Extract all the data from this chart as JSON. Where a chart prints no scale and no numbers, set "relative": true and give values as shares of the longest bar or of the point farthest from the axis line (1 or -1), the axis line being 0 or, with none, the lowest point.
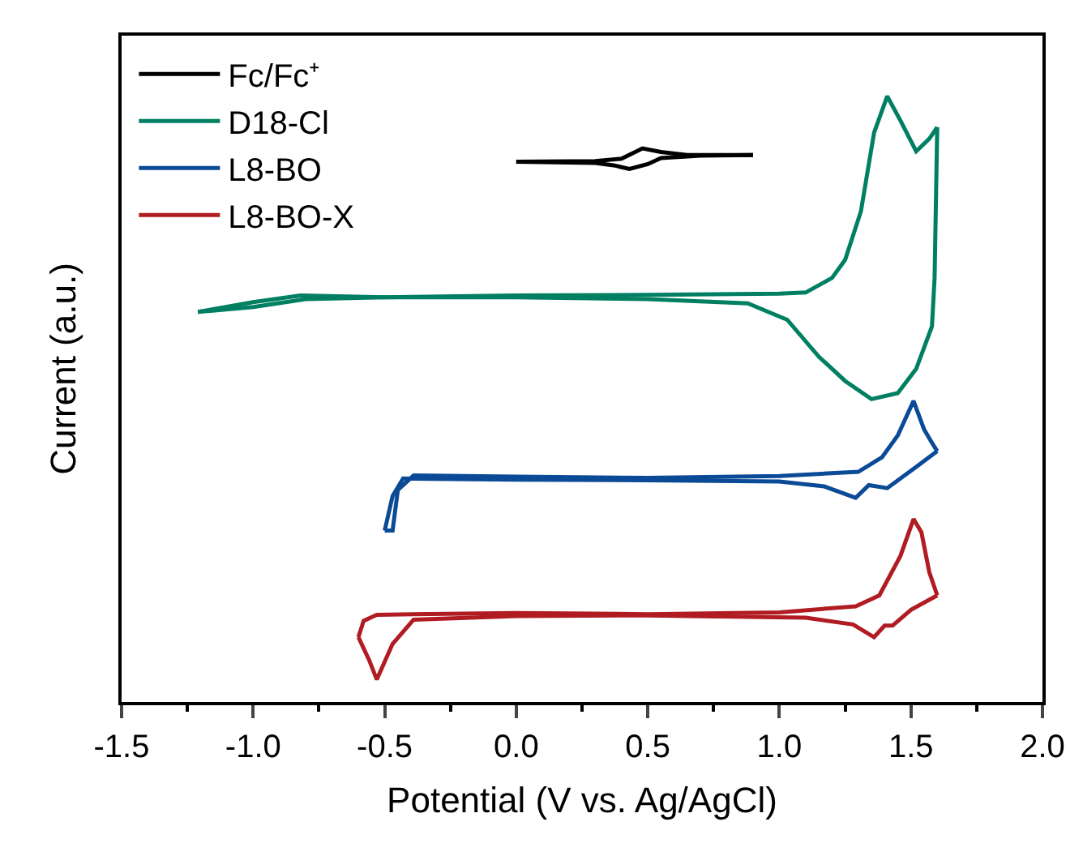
{
  "chart_data": {
    "type": "line",
    "relative": true,
    "xlabel": "Potential (V vs. Ag/AgCl)",
    "ylabel": "Current (a.u.)",
    "xlim": [
      -1.5,
      2.0
    ],
    "xticks": [
      -1.5,
      {
        "value": -1,
        "label": "-1.0"
      },
      -0.5,
      {
        "value": 0,
        "label": "0.0"
      },
      0.5,
      {
        "value": 1,
        "label": "1.0"
      },
      1.5,
      {
        "value": 2,
        "label": "2.0"
      }
    ],
    "legend": "top left",
    "marker": "none",
    "line_style": "solid",
    "series": [
      {
        "name": "Fc/Fc⁺",
        "color": "#000000",
        "x": [
          0,
          0.3,
          0.4,
          0.48,
          0.55,
          0.65,
          0.9
        ],
        "values": [
          0.892,
          0.893,
          0.897,
          0.914,
          0.908,
          0.903,
          0.903
        ]
      },
      {
        "color": "#000000",
        "x": [
          0.9,
          0.7,
          0.55,
          0.5,
          0.43,
          0.37,
          0.3,
          0
        ],
        "values": [
          0.903,
          0.902,
          0.898,
          0.888,
          0.88,
          0.886,
          0.89,
          0.892
        ]
      },
      {
        "name": "D18-Cl",
        "color": "#007f62",
        "x": [
          -1.21,
          -1.0,
          -0.8,
          -0.5,
          0,
          0.5,
          1.0,
          1.1,
          1.2,
          1.25,
          1.31,
          1.36,
          1.41,
          1.46,
          1.52,
          1.57,
          1.6
        ],
        "values": [
          0.644,
          0.652,
          0.665,
          0.668,
          0.671,
          0.672,
          0.674,
          0.676,
          0.7,
          0.73,
          0.81,
          0.94,
          1.0,
          0.96,
          0.909,
          0.93,
          0.949
        ]
      },
      {
        "color": "#007f62",
        "x": [
          1.6,
          1.59,
          1.58,
          1.52,
          1.45,
          1.35,
          1.25,
          1.15,
          1.03,
          0.88,
          0.5,
          0,
          -0.5,
          -0.82,
          -1.0,
          -1.21
        ],
        "values": [
          0.949,
          0.7,
          0.62,
          0.55,
          0.51,
          0.5,
          0.53,
          0.57,
          0.631,
          0.658,
          0.665,
          0.668,
          0.668,
          0.671,
          0.66,
          0.644
        ]
      },
      {
        "name": "L8-BO",
        "color": "#0b4a96",
        "x": [
          -0.5,
          -0.47,
          -0.45,
          -0.39,
          0,
          0.5,
          1.0,
          1.3,
          1.39,
          1.45,
          1.51,
          1.55,
          1.58,
          1.6
        ],
        "values": [
          0.283,
          0.283,
          0.35,
          0.374,
          0.372,
          0.37,
          0.373,
          0.38,
          0.404,
          0.44,
          0.497,
          0.45,
          0.428,
          0.414
        ]
      },
      {
        "color": "#0b4a96",
        "x": [
          1.6,
          1.52,
          1.41,
          1.34,
          1.29,
          1.17,
          1.0,
          0.5,
          0,
          -0.43,
          -0.47,
          -0.5
        ],
        "values": [
          0.414,
          0.388,
          0.353,
          0.358,
          0.337,
          0.356,
          0.364,
          0.366,
          0.367,
          0.369,
          0.34,
          0.283
        ]
      },
      {
        "name": "L8-BO-X",
        "color": "#b01c22",
        "x": [
          -0.6,
          -0.58,
          -0.53,
          0,
          0.5,
          1.0,
          1.29,
          1.38,
          1.46,
          1.51,
          1.54,
          1.57,
          1.6
        ],
        "values": [
          0.107,
          0.134,
          0.144,
          0.147,
          0.145,
          0.148,
          0.158,
          0.176,
          0.241,
          0.302,
          0.28,
          0.214,
          0.176
        ]
      },
      {
        "color": "#b01c22",
        "x": [
          1.6,
          1.5,
          1.43,
          1.4,
          1.36,
          1.28,
          1.1,
          0.5,
          0,
          -0.39,
          -0.47,
          -0.53,
          -0.56,
          -0.6
        ],
        "values": [
          0.176,
          0.152,
          0.126,
          0.126,
          0.107,
          0.128,
          0.139,
          0.143,
          0.142,
          0.136,
          0.096,
          0.037,
          0.07,
          0.107
        ]
      }
    ]
  }
}
